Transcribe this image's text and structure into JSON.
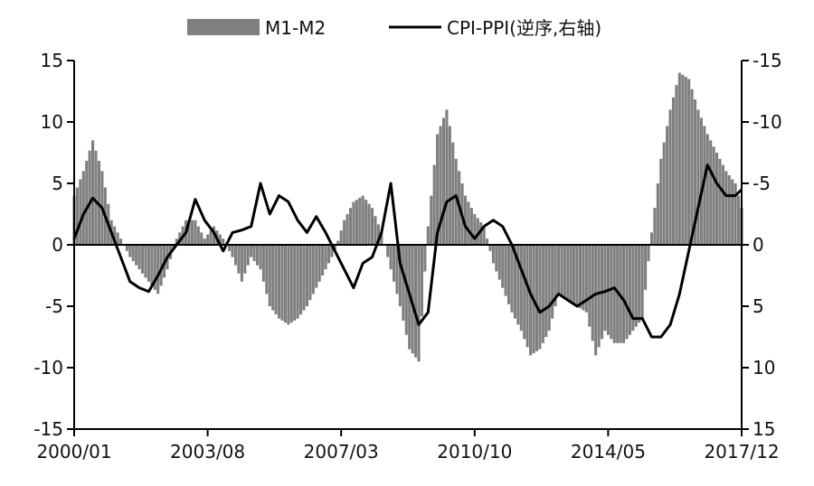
{
  "chart_data": {
    "type": "bar+line",
    "title": "",
    "xlabel": "",
    "ylabel_left": "",
    "ylabel_right": "",
    "legend": [
      "M1-M2",
      "CPI-PPI(逆序,右轴)"
    ],
    "x_tick_labels": [
      "2000/01",
      "2003/08",
      "2007/03",
      "2010/10",
      "2014/05",
      "2017/12"
    ],
    "y_left": {
      "lim": [
        -15,
        15
      ],
      "ticks": [
        15,
        10,
        5,
        0,
        -5,
        -10,
        -15
      ],
      "tick_labels": [
        "15",
        "10",
        "5",
        "0",
        "-5",
        "-10",
        "-15"
      ]
    },
    "y_right": {
      "lim": [
        15,
        -15
      ],
      "inverted": true,
      "ticks": [
        -15,
        -10,
        -5,
        0,
        5,
        10,
        15
      ],
      "tick_labels": [
        "-15",
        "-10",
        "-5",
        "0",
        "5",
        "10",
        "15"
      ]
    },
    "x_range": [
      "2000-01",
      "2017-12"
    ],
    "series": [
      {
        "name": "M1-M2",
        "type": "bar",
        "axis": "left",
        "color": "#7f7f7f",
        "points": [
          [
            "2000-01",
            4.0
          ],
          [
            "2000-04",
            6.0
          ],
          [
            "2000-07",
            8.5
          ],
          [
            "2000-10",
            6.0
          ],
          [
            "2001-01",
            2.0
          ],
          [
            "2001-04",
            0.5
          ],
          [
            "2001-07",
            -1.0
          ],
          [
            "2001-10",
            -2.0
          ],
          [
            "2002-01",
            -3.0
          ],
          [
            "2002-04",
            -4.0
          ],
          [
            "2002-07",
            -2.0
          ],
          [
            "2002-10",
            0.5
          ],
          [
            "2003-01",
            2.0
          ],
          [
            "2003-04",
            2.0
          ],
          [
            "2003-07",
            0.5
          ],
          [
            "2003-10",
            1.5
          ],
          [
            "2004-01",
            0.5
          ],
          [
            "2004-04",
            -1.0
          ],
          [
            "2004-07",
            -3.0
          ],
          [
            "2004-10",
            -1.0
          ],
          [
            "2005-01",
            -2.0
          ],
          [
            "2005-04",
            -5.0
          ],
          [
            "2005-07",
            -6.0
          ],
          [
            "2005-10",
            -6.5
          ],
          [
            "2006-01",
            -6.0
          ],
          [
            "2006-04",
            -5.0
          ],
          [
            "2006-07",
            -3.5
          ],
          [
            "2006-10",
            -2.0
          ],
          [
            "2007-01",
            -0.5
          ],
          [
            "2007-04",
            2.0
          ],
          [
            "2007-07",
            3.5
          ],
          [
            "2007-10",
            4.0
          ],
          [
            "2008-01",
            3.0
          ],
          [
            "2008-04",
            1.0
          ],
          [
            "2008-07",
            -2.0
          ],
          [
            "2008-10",
            -5.0
          ],
          [
            "2009-01",
            -8.5
          ],
          [
            "2009-04",
            -9.5
          ],
          [
            "2009-07",
            1.5
          ],
          [
            "2009-10",
            9.0
          ],
          [
            "2010-01",
            11.0
          ],
          [
            "2010-04",
            7.0
          ],
          [
            "2010-07",
            4.0
          ],
          [
            "2010-10",
            2.5
          ],
          [
            "2011-01",
            1.5
          ],
          [
            "2011-04",
            -1.5
          ],
          [
            "2011-07",
            -3.5
          ],
          [
            "2011-10",
            -5.5
          ],
          [
            "2012-01",
            -7.0
          ],
          [
            "2012-04",
            -9.0
          ],
          [
            "2012-07",
            -8.5
          ],
          [
            "2012-10",
            -7.0
          ],
          [
            "2013-01",
            -4.0
          ],
          [
            "2013-04",
            -4.5
          ],
          [
            "2013-07",
            -5.0
          ],
          [
            "2013-10",
            -5.5
          ],
          [
            "2014-01",
            -9.0
          ],
          [
            "2014-04",
            -7.0
          ],
          [
            "2014-07",
            -8.0
          ],
          [
            "2014-10",
            -8.0
          ],
          [
            "2015-01",
            -7.0
          ],
          [
            "2015-04",
            -6.0
          ],
          [
            "2015-07",
            1.0
          ],
          [
            "2015-10",
            7.0
          ],
          [
            "2016-01",
            11.0
          ],
          [
            "2016-04",
            14.0
          ],
          [
            "2016-07",
            13.5
          ],
          [
            "2016-10",
            11.0
          ],
          [
            "2017-01",
            9.0
          ],
          [
            "2017-04",
            7.5
          ],
          [
            "2017-07",
            6.0
          ],
          [
            "2017-10",
            5.0
          ],
          [
            "2017-12",
            3.0
          ]
        ]
      },
      {
        "name": "CPI-PPI(逆序,右轴)",
        "type": "line",
        "axis": "right",
        "color": "#000000",
        "points": [
          [
            "2000-01",
            -0.5
          ],
          [
            "2000-04",
            -2.5
          ],
          [
            "2000-07",
            -3.8
          ],
          [
            "2000-10",
            -3.0
          ],
          [
            "2001-01",
            -1.0
          ],
          [
            "2001-04",
            1.0
          ],
          [
            "2001-07",
            3.0
          ],
          [
            "2001-10",
            3.5
          ],
          [
            "2002-01",
            3.8
          ],
          [
            "2002-04",
            2.5
          ],
          [
            "2002-07",
            1.0
          ],
          [
            "2002-10",
            0.0
          ],
          [
            "2003-01",
            -1.0
          ],
          [
            "2003-04",
            -3.7
          ],
          [
            "2003-07",
            -2.0
          ],
          [
            "2003-10",
            -1.0
          ],
          [
            "2004-01",
            0.5
          ],
          [
            "2004-04",
            -1.0
          ],
          [
            "2004-07",
            -1.2
          ],
          [
            "2004-10",
            -1.5
          ],
          [
            "2005-01",
            -5.0
          ],
          [
            "2005-04",
            -2.5
          ],
          [
            "2005-07",
            -4.0
          ],
          [
            "2005-10",
            -3.5
          ],
          [
            "2006-01",
            -2.0
          ],
          [
            "2006-04",
            -1.0
          ],
          [
            "2006-07",
            -2.3
          ],
          [
            "2006-10",
            -1.0
          ],
          [
            "2007-01",
            0.5
          ],
          [
            "2007-04",
            2.0
          ],
          [
            "2007-07",
            3.5
          ],
          [
            "2007-10",
            1.5
          ],
          [
            "2008-01",
            1.0
          ],
          [
            "2008-04",
            -1.0
          ],
          [
            "2008-07",
            -5.0
          ],
          [
            "2008-10",
            1.5
          ],
          [
            "2009-01",
            4.0
          ],
          [
            "2009-04",
            6.5
          ],
          [
            "2009-07",
            5.5
          ],
          [
            "2009-10",
            -1.0
          ],
          [
            "2010-01",
            -3.5
          ],
          [
            "2010-04",
            -4.0
          ],
          [
            "2010-07",
            -1.5
          ],
          [
            "2010-10",
            -0.5
          ],
          [
            "2011-01",
            -1.5
          ],
          [
            "2011-04",
            -2.0
          ],
          [
            "2011-07",
            -1.5
          ],
          [
            "2011-10",
            0.0
          ],
          [
            "2012-01",
            2.0
          ],
          [
            "2012-04",
            4.0
          ],
          [
            "2012-07",
            5.5
          ],
          [
            "2012-10",
            5.0
          ],
          [
            "2013-01",
            4.0
          ],
          [
            "2013-04",
            4.5
          ],
          [
            "2013-07",
            5.0
          ],
          [
            "2013-10",
            4.5
          ],
          [
            "2014-01",
            4.0
          ],
          [
            "2014-04",
            3.8
          ],
          [
            "2014-07",
            3.5
          ],
          [
            "2014-10",
            4.5
          ],
          [
            "2015-01",
            6.0
          ],
          [
            "2015-04",
            6.0
          ],
          [
            "2015-07",
            7.5
          ],
          [
            "2015-10",
            7.5
          ],
          [
            "2016-01",
            6.5
          ],
          [
            "2016-04",
            4.0
          ],
          [
            "2016-07",
            0.5
          ],
          [
            "2016-10",
            -3.0
          ],
          [
            "2017-01",
            -6.5
          ],
          [
            "2017-04",
            -5.0
          ],
          [
            "2017-07",
            -4.0
          ],
          [
            "2017-10",
            -4.0
          ],
          [
            "2017-12",
            -4.5
          ]
        ]
      }
    ],
    "grid": false,
    "legend_position": "top"
  }
}
